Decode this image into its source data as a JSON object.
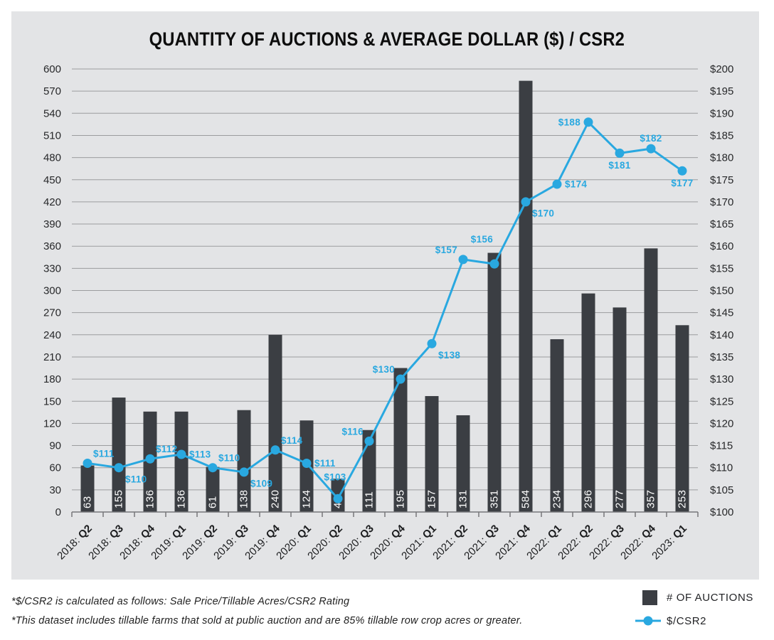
{
  "title": "QUANTITY OF AUCTIONS & AVERAGE DOLLAR ($) / CSR2",
  "footnotes": [
    "*$/CSR2 is calculated as follows: Sale Price/Tillable Acres/CSR2 Rating",
    "*This dataset includes tillable farms that sold at public auction and are 85% tillable row crop acres or greater."
  ],
  "legend": [
    {
      "label": "# OF AUCTIONS",
      "marker": "bar-swatch"
    },
    {
      "label": "$/CSR2",
      "marker": "line-dot"
    }
  ],
  "colors": {
    "background": "#ffffff",
    "panel": "#e3e4e6",
    "bar": "#3b3e43",
    "line": "#29a8e0",
    "grid": "#9b9c9e",
    "axis": "#76777a",
    "tick_text": "#27282a",
    "bar_label_text": "#ffffff"
  },
  "chart_data": {
    "type": "bar+line",
    "title": "QUANTITY OF AUCTIONS & AVERAGE DOLLAR ($) / CSR2",
    "categories": [
      "2018: Q2",
      "2018: Q3",
      "2018: Q4",
      "2019: Q1",
      "2019: Q2",
      "2019: Q3",
      "2019: Q4",
      "2020: Q1",
      "2020: Q2",
      "2020: Q3",
      "2020: Q4",
      "2021: Q1",
      "2021: Q2",
      "2021: Q3",
      "2021: Q4",
      "2022: Q1",
      "2022: Q2",
      "2022: Q3",
      "2022: Q4",
      "2023: Q1"
    ],
    "series": [
      {
        "name": "# OF AUCTIONS",
        "type": "bar",
        "axis": "left",
        "values": [
          63,
          155,
          136,
          136,
          61,
          138,
          240,
          124,
          45,
          111,
          195,
          157,
          131,
          351,
          584,
          234,
          296,
          277,
          357,
          253
        ]
      },
      {
        "name": "$/CSR2",
        "type": "line",
        "axis": "right",
        "values": [
          111,
          110,
          112,
          113,
          110,
          109,
          114,
          111,
          103,
          116,
          130,
          138,
          157,
          156,
          170,
          174,
          188,
          181,
          182,
          177
        ],
        "point_labels": [
          "$111",
          "$110",
          "$112",
          "$113",
          "$110",
          "$109",
          "$114",
          "$111",
          "$103",
          "$116",
          "$130",
          "$138",
          "$157",
          "$156",
          "$170",
          "$174",
          "$188",
          "$181",
          "$182",
          "$177"
        ],
        "label_pos": [
          "above-right",
          "below-right",
          "above-right",
          "right",
          "above-right",
          "below-right",
          "above-right",
          "right",
          "above2",
          "above-left",
          "above-left",
          "below-right",
          "above-left",
          "above-left2",
          "below-right",
          "right",
          "left",
          "below",
          "above",
          "below"
        ]
      }
    ],
    "axes": {
      "left": {
        "min": 0,
        "max": 600,
        "step": 30,
        "prefix": ""
      },
      "right": {
        "min": 100,
        "max": 200,
        "step": 5,
        "prefix": "$"
      }
    },
    "grid": true,
    "legend_position": "bottom-right"
  }
}
